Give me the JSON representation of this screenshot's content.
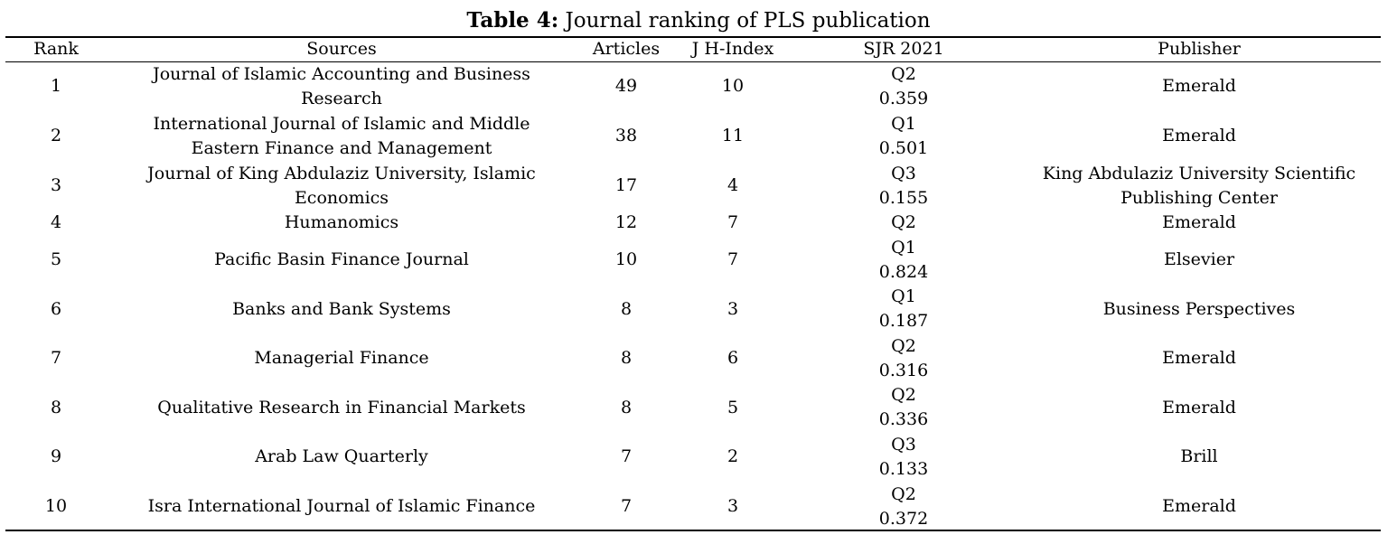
{
  "caption": {
    "label": "Table 4:",
    "text": " Journal ranking of PLS publication"
  },
  "headers": {
    "rank": "Rank",
    "sources": "Sources",
    "articles": "Articles",
    "h_index": "J H-Index",
    "sjr": "SJR 2021",
    "publisher": "Publisher"
  },
  "rows": [
    {
      "rank": "1",
      "source": "Journal of Islamic Accounting and Business Research",
      "articles": "49",
      "h_index": "10",
      "sjr_q": "Q2",
      "sjr_v": "0.359",
      "publisher": "Emerald"
    },
    {
      "rank": "2",
      "source": "International Journal of Islamic and Middle Eastern Finance and Management",
      "articles": "38",
      "h_index": "11",
      "sjr_q": "Q1",
      "sjr_v": "0.501",
      "publisher": "Emerald"
    },
    {
      "rank": "3",
      "source": "Journal of King Abdulaziz University, Islamic Economics",
      "articles": "17",
      "h_index": "4",
      "sjr_q": "Q3",
      "sjr_v": "0.155",
      "publisher": "King Abdulaziz University Scientific Publishing Center"
    },
    {
      "rank": "4",
      "source": "Humanomics",
      "articles": "12",
      "h_index": "7",
      "sjr_q": "Q2",
      "sjr_v": "",
      "publisher": "Emerald"
    },
    {
      "rank": "5",
      "source": "Pacific Basin Finance Journal",
      "articles": "10",
      "h_index": "7",
      "sjr_q": "Q1",
      "sjr_v": "0.824",
      "publisher": "Elsevier"
    },
    {
      "rank": "6",
      "source": "Banks and Bank Systems",
      "articles": "8",
      "h_index": "3",
      "sjr_q": "Q1",
      "sjr_v": "0.187",
      "publisher": "Business Perspectives"
    },
    {
      "rank": "7",
      "source": "Managerial Finance",
      "articles": "8",
      "h_index": "6",
      "sjr_q": "Q2",
      "sjr_v": "0.316",
      "publisher": "Emerald"
    },
    {
      "rank": "8",
      "source": "Qualitative Research in Financial Markets",
      "articles": "8",
      "h_index": "5",
      "sjr_q": "Q2",
      "sjr_v": "0.336",
      "publisher": "Emerald"
    },
    {
      "rank": "9",
      "source": "Arab Law Quarterly",
      "articles": "7",
      "h_index": "2",
      "sjr_q": "Q3",
      "sjr_v": "0.133",
      "publisher": "Brill"
    },
    {
      "rank": "10",
      "source": "Isra International Journal of Islamic Finance",
      "articles": "7",
      "h_index": "3",
      "sjr_q": "Q2",
      "sjr_v": "0.372",
      "publisher": "Emerald"
    }
  ]
}
